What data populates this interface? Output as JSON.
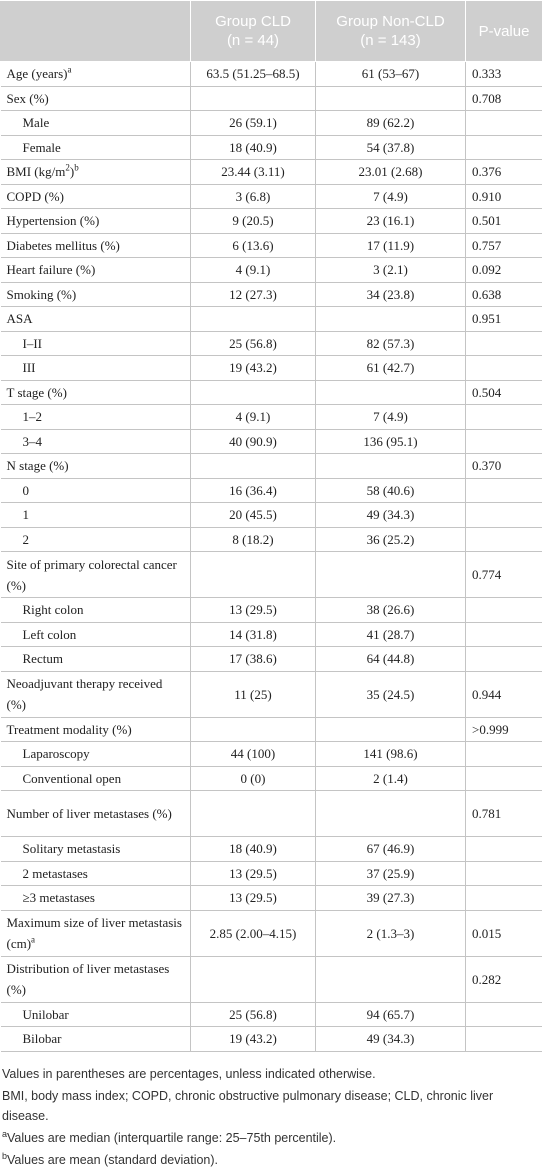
{
  "table": {
    "columns": [
      {
        "line1": "Group CLD",
        "line2": "(n = 44)"
      },
      {
        "line1": "Group Non-CLD",
        "line2": "(n = 143)"
      },
      {
        "line1": "P-value"
      }
    ],
    "rows": [
      {
        "label": [
          "Age (years)",
          {
            "sup": "a"
          }
        ],
        "cld": "63.5 (51.25–68.5)",
        "non_cld": "61 (53–67)",
        "p": "0.333"
      },
      {
        "label": [
          "Sex (%)"
        ],
        "p": "0.708"
      },
      {
        "label": [
          "Male"
        ],
        "indent": true,
        "cld": "26 (59.1)",
        "non_cld": "89 (62.2)"
      },
      {
        "label": [
          "Female"
        ],
        "indent": true,
        "cld": "18 (40.9)",
        "non_cld": "54 (37.8)"
      },
      {
        "label": [
          "BMI (kg/m",
          {
            "sup": "2"
          },
          ")",
          {
            "sup": "b"
          }
        ],
        "cld": "23.44 (3.11)",
        "non_cld": "23.01 (2.68)",
        "p": "0.376"
      },
      {
        "label": [
          "COPD (%)"
        ],
        "cld": "3 (6.8)",
        "non_cld": "7 (4.9)",
        "p": "0.910"
      },
      {
        "label": [
          "Hypertension (%)"
        ],
        "cld": "9 (20.5)",
        "non_cld": "23 (16.1)",
        "p": "0.501"
      },
      {
        "label": [
          "Diabetes mellitus (%)"
        ],
        "cld": "6 (13.6)",
        "non_cld": "17 (11.9)",
        "p": "0.757"
      },
      {
        "label": [
          "Heart failure (%)"
        ],
        "cld": "4 (9.1)",
        "non_cld": "3 (2.1)",
        "p": "0.092"
      },
      {
        "label": [
          "Smoking (%)"
        ],
        "cld": "12 (27.3)",
        "non_cld": "34 (23.8)",
        "p": "0.638"
      },
      {
        "label": [
          "ASA"
        ],
        "p": "0.951"
      },
      {
        "label": [
          "I–II"
        ],
        "indent": true,
        "cld": "25 (56.8)",
        "non_cld": "82 (57.3)"
      },
      {
        "label": [
          "III"
        ],
        "indent": true,
        "cld": "19 (43.2)",
        "non_cld": "61 (42.7)"
      },
      {
        "label": [
          "T stage (%)"
        ],
        "p": "0.504"
      },
      {
        "label": [
          "1–2"
        ],
        "indent": true,
        "cld": "4 (9.1)",
        "non_cld": "7 (4.9)"
      },
      {
        "label": [
          "3–4"
        ],
        "indent": true,
        "cld": "40 (90.9)",
        "non_cld": "136 (95.1)"
      },
      {
        "label": [
          "N stage (%)"
        ],
        "p": "0.370"
      },
      {
        "label": [
          "0"
        ],
        "indent": true,
        "cld": "16 (36.4)",
        "non_cld": "58 (40.6)"
      },
      {
        "label": [
          "1"
        ],
        "indent": true,
        "cld": "20 (45.5)",
        "non_cld": "49 (34.3)"
      },
      {
        "label": [
          "2"
        ],
        "indent": true,
        "cld": "8 (18.2)",
        "non_cld": "36 (25.2)"
      },
      {
        "label": [
          "Site of primary colorectal cancer (%)"
        ],
        "double": true,
        "p": "0.774"
      },
      {
        "label": [
          "Right colon"
        ],
        "indent": true,
        "cld": "13 (29.5)",
        "non_cld": "38 (26.6)"
      },
      {
        "label": [
          "Left colon"
        ],
        "indent": true,
        "cld": "14 (31.8)",
        "non_cld": "41 (28.7)"
      },
      {
        "label": [
          "Rectum"
        ],
        "indent": true,
        "cld": "17 (38.6)",
        "non_cld": "64 (44.8)"
      },
      {
        "label": [
          "Neoadjuvant therapy received (%)"
        ],
        "double": true,
        "cld": "11 (25)",
        "non_cld": "35 (24.5)",
        "p": "0.944"
      },
      {
        "label": [
          "Treatment modality (%)"
        ],
        "p": ">0.999"
      },
      {
        "label": [
          "Laparoscopy"
        ],
        "indent": true,
        "cld": "44 (100)",
        "non_cld": "141 (98.6)"
      },
      {
        "label": [
          "Conventional open"
        ],
        "indent": true,
        "cld": "0 (0)",
        "non_cld": "2 (1.4)"
      },
      {
        "label": [
          "Number of liver metastases (%)"
        ],
        "double": true,
        "p": "0.781"
      },
      {
        "label": [
          "Solitary metastasis"
        ],
        "indent": true,
        "cld": "18 (40.9)",
        "non_cld": "67 (46.9)"
      },
      {
        "label": [
          "2 metastases"
        ],
        "indent": true,
        "cld": "13 (29.5)",
        "non_cld": "37 (25.9)"
      },
      {
        "label": [
          "≥3 metastases"
        ],
        "indent": true,
        "cld": "13 (29.5)",
        "non_cld": "39 (27.3)"
      },
      {
        "label": [
          "Maximum size of liver metastasis (cm)",
          {
            "sup": "a"
          }
        ],
        "double": true,
        "cld": "2.85 (2.00–4.15)",
        "non_cld": "2 (1.3–3)",
        "p": "0.015"
      },
      {
        "label": [
          "Distribution of liver metastases (%)"
        ],
        "double": true,
        "p": "0.282"
      },
      {
        "label": [
          "Unilobar"
        ],
        "indent": true,
        "cld": "25 (56.8)",
        "non_cld": "94 (65.7)"
      },
      {
        "label": [
          "Bilobar"
        ],
        "indent": true,
        "cld": "19 (43.2)",
        "non_cld": "49 (34.3)"
      }
    ]
  },
  "footnotes": [
    [
      "Values in parentheses are percentages, unless indicated otherwise."
    ],
    [
      "BMI, body mass index; COPD, chronic obstructive pulmonary disease; CLD, chronic liver disease."
    ],
    [
      {
        "sup": "a"
      },
      "Values are median (interquartile range: 25–75th percentile)."
    ],
    [
      {
        "sup": "b"
      },
      "Values are mean (standard deviation)."
    ]
  ]
}
